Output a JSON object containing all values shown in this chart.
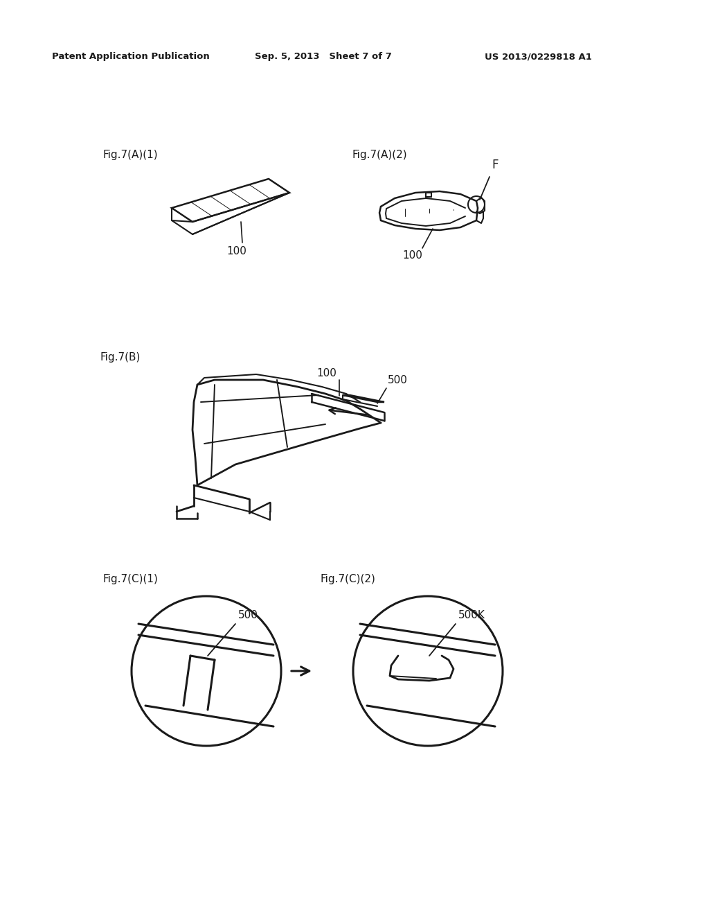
{
  "bg_color": "#ffffff",
  "header_left": "Patent Application Publication",
  "header_mid": "Sep. 5, 2013   Sheet 7 of 7",
  "header_right": "US 2013/0229818 A1",
  "fig_labels": {
    "fig7A1": "Fig.7(A)(1)",
    "fig7A2": "Fig.7(A)(2)",
    "fig7B": "Fig.7(B)",
    "fig7C1": "Fig.7(C)(1)",
    "fig7C2": "Fig.7(C)(2)"
  },
  "ref_labels": {
    "r100_A1": "100",
    "r100_A2": "100",
    "rF": "F",
    "r100_B": "100",
    "r500_B": "500",
    "r500_C1": "500",
    "r500K_C2": "500K"
  },
  "lc": "#1a1a1a",
  "tc": "#1a1a1a"
}
